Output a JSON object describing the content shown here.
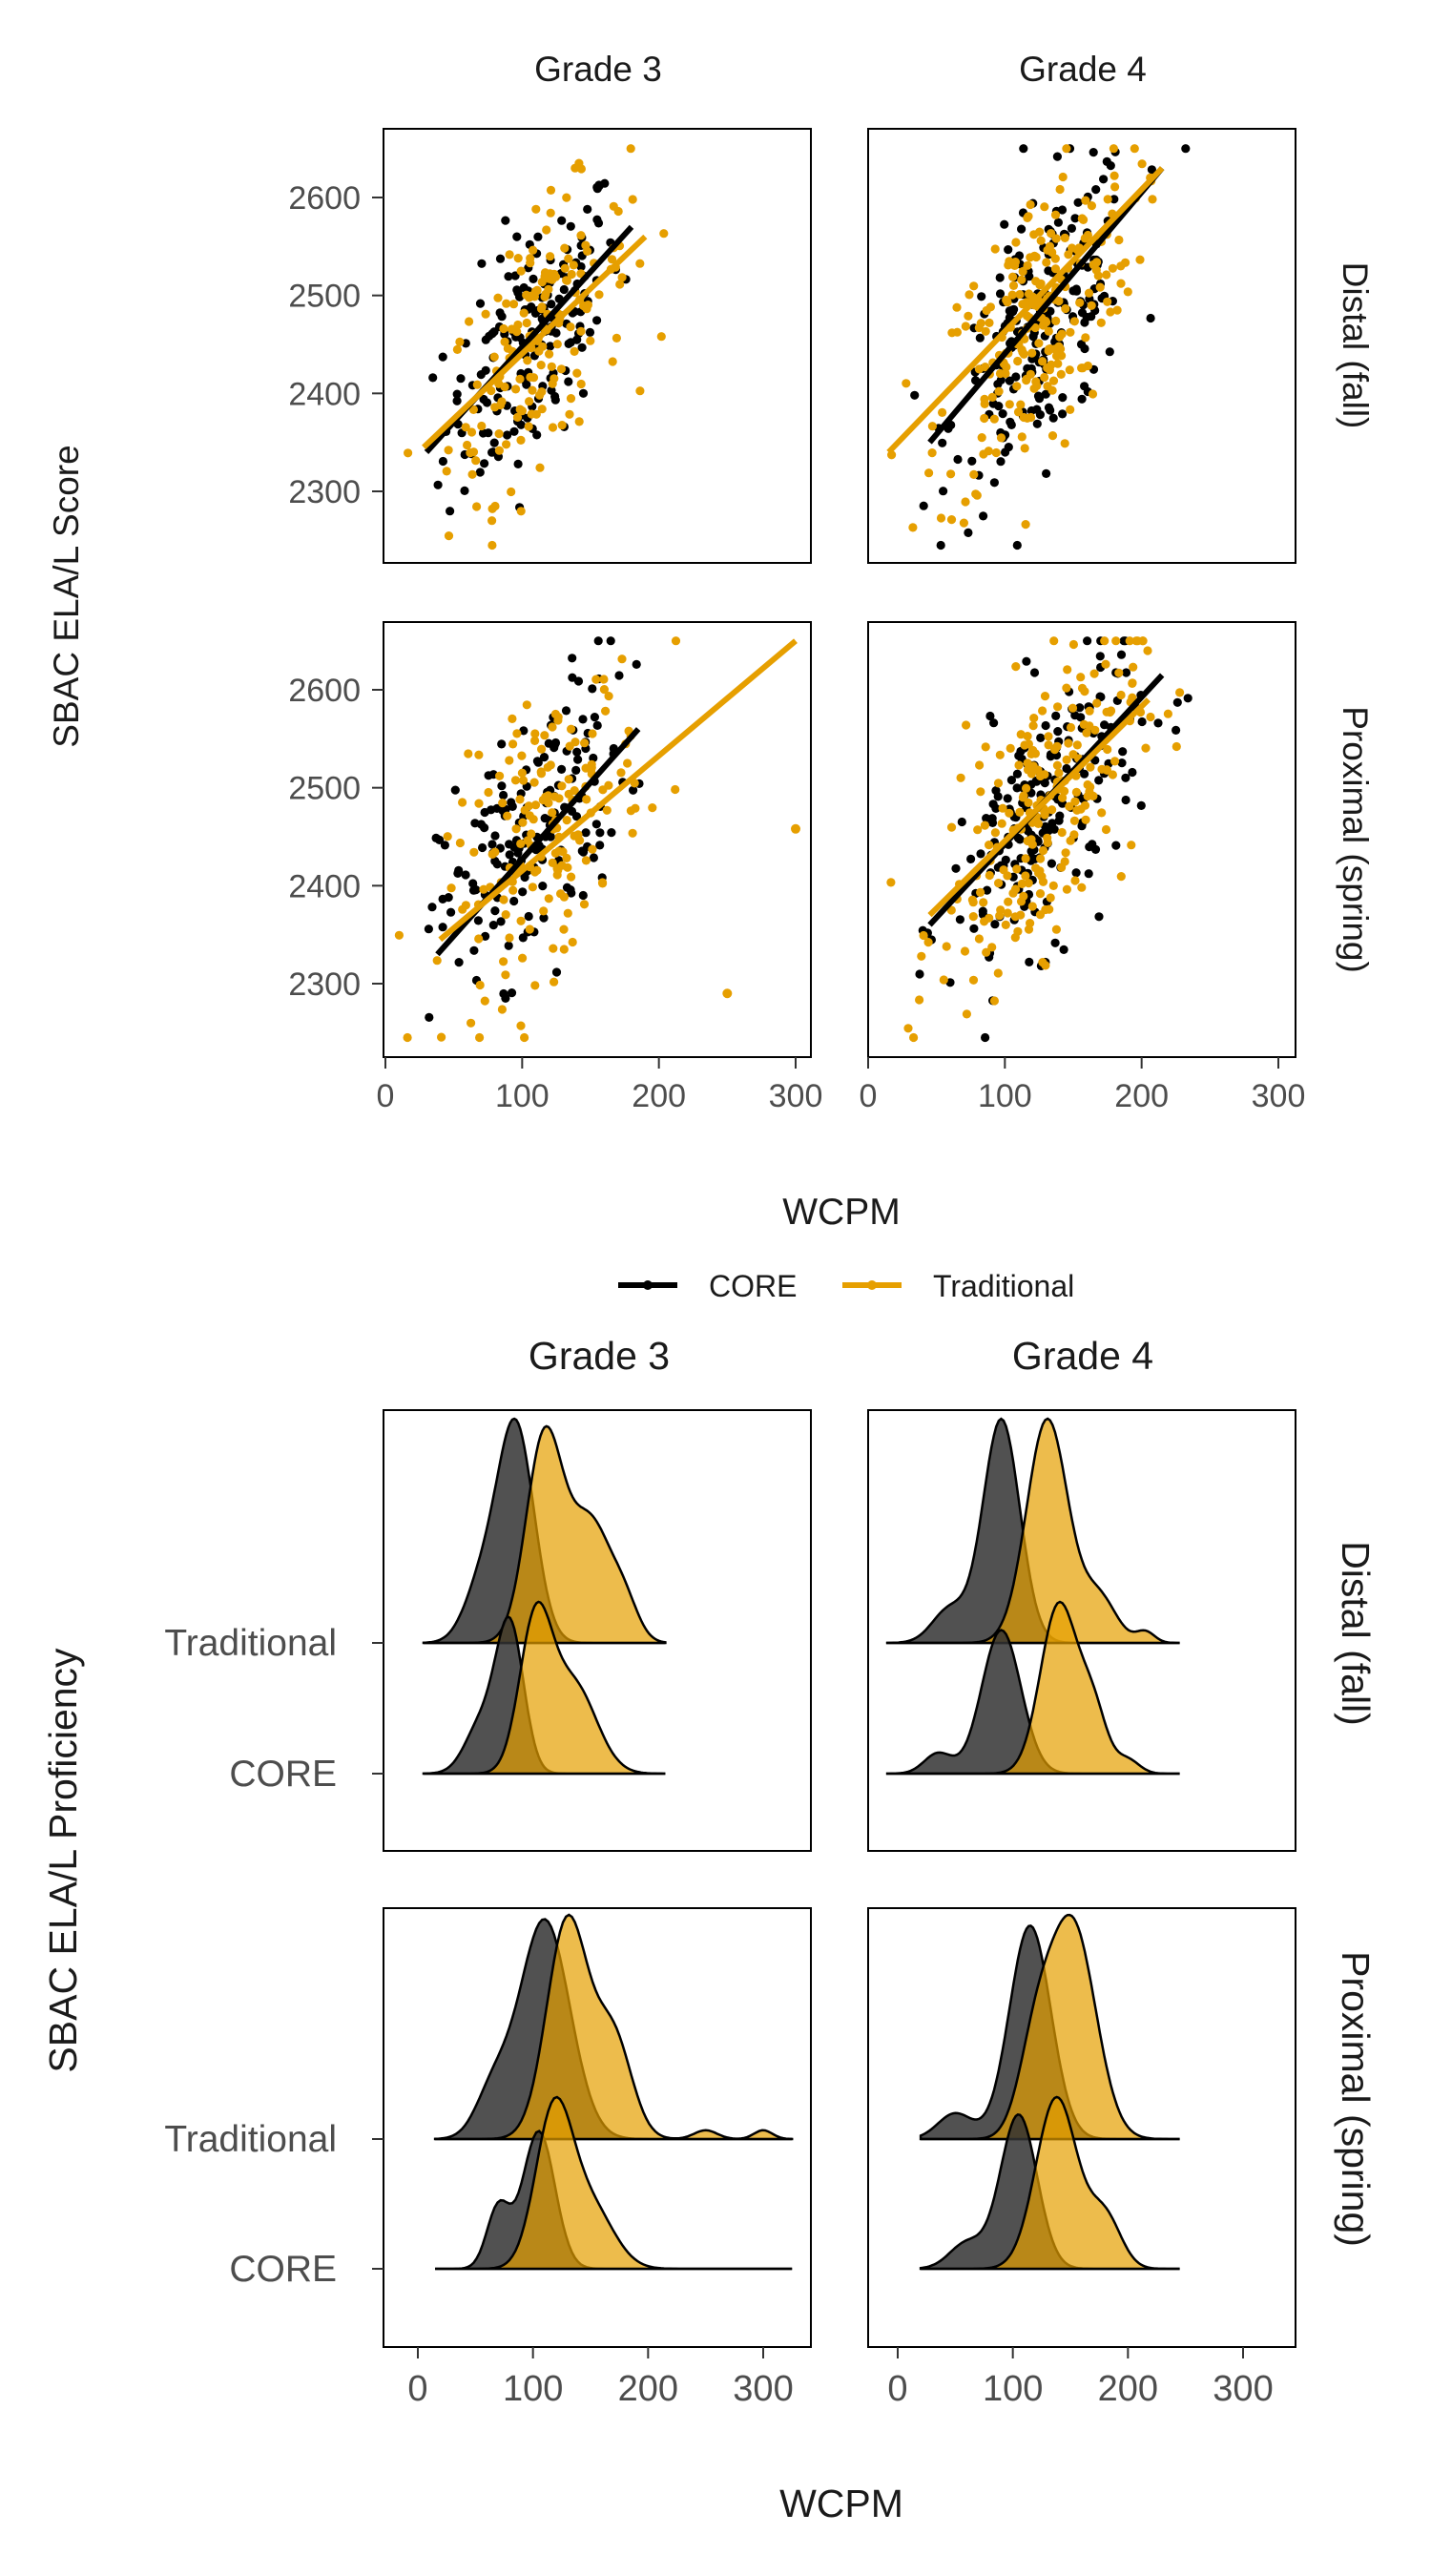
{
  "figure": {
    "top_strip_labels": [
      "Grade 3",
      "Grade 4"
    ],
    "bottom_strip_labels": [
      "Grade 3",
      "Grade 4"
    ],
    "row_labels": [
      "Distal (fall)",
      "Proximal (spring)"
    ],
    "top_ylabel": "SBAC ELA/L Score",
    "top_xlabel": "WCPM",
    "bottom_ylabel": "SBAC ELA/L Proficiency",
    "bottom_xlabel": "WCPM",
    "legend": [
      "CORE",
      "Traditional"
    ],
    "colors": {
      "CORE": "#000000",
      "Traditional": "#E69F00"
    }
  },
  "chart_data": [
    {
      "type": "scatter",
      "title": "",
      "facets": {
        "columns": [
          "Grade 3",
          "Grade 4"
        ],
        "rows": [
          "Distal (fall)",
          "Proximal (spring)"
        ]
      },
      "xlabel": "WCPM",
      "ylabel": "SBAC ELA/L Score",
      "xlim": [
        0,
        310
      ],
      "ylim": [
        2220,
        2670
      ],
      "xticks": [
        0,
        100,
        200,
        300
      ],
      "yticks": [
        2300,
        2400,
        2500,
        2600
      ],
      "legend_position": "bottom",
      "series": [
        {
          "name": "CORE",
          "color": "#000000"
        },
        {
          "name": "Traditional",
          "color": "#E69F00"
        }
      ],
      "panels": [
        {
          "column": "Grade 3",
          "row": "Distal (fall)",
          "point_cloud": {
            "CORE": {
              "x_mean": 108,
              "x_sd": 32,
              "y_mean": 2455,
              "y_sd": 75,
              "r": 0.6,
              "n": 170
            },
            "Traditional": {
              "x_mean": 112,
              "x_sd": 33,
              "y_mean": 2455,
              "y_sd": 75,
              "r": 0.6,
              "n": 170
            }
          },
          "fit_lines": {
            "CORE": {
              "x": [
                30,
                180
              ],
              "y": [
                2340,
                2570
              ]
            },
            "Traditional": {
              "x": [
                28,
                190
              ],
              "y": [
                2345,
                2560
              ]
            }
          }
        },
        {
          "column": "Grade 4",
          "row": "Distal (fall)",
          "point_cloud": {
            "CORE": {
              "x_mean": 128,
              "x_sd": 33,
              "y_mean": 2470,
              "y_sd": 80,
              "r": 0.6,
              "n": 210
            },
            "Traditional": {
              "x_mean": 122,
              "x_sd": 36,
              "y_mean": 2470,
              "y_sd": 85,
              "r": 0.6,
              "n": 230
            }
          },
          "fit_lines": {
            "CORE": {
              "x": [
                45,
                215
              ],
              "y": [
                2350,
                2630
              ]
            },
            "Traditional": {
              "x": [
                15,
                215
              ],
              "y": [
                2340,
                2630
              ]
            }
          }
        },
        {
          "column": "Grade 3",
          "row": "Proximal (spring)",
          "point_cloud": {
            "CORE": {
              "x_mean": 108,
              "x_sd": 34,
              "y_mean": 2455,
              "y_sd": 80,
              "r": 0.6,
              "n": 170
            },
            "Traditional": {
              "x_mean": 118,
              "x_sd": 36,
              "y_mean": 2455,
              "y_sd": 80,
              "r": 0.55,
              "n": 170
            }
          },
          "fit_lines": {
            "CORE": {
              "x": [
                38,
                185
              ],
              "y": [
                2330,
                2560
              ]
            },
            "Traditional": {
              "x": [
                40,
                300
              ],
              "y": [
                2345,
                2650
              ]
            }
          },
          "extra_points": {
            "Traditional": [
              {
                "x": 300,
                "y": 2458
              },
              {
                "x": 250,
                "y": 2290
              }
            ]
          }
        },
        {
          "column": "Grade 4",
          "row": "Proximal (spring)",
          "point_cloud": {
            "CORE": {
              "x_mean": 130,
              "x_sd": 35,
              "y_mean": 2475,
              "y_sd": 80,
              "r": 0.6,
              "n": 210
            },
            "Traditional": {
              "x_mean": 125,
              "x_sd": 36,
              "y_mean": 2470,
              "y_sd": 85,
              "r": 0.6,
              "n": 230
            }
          },
          "fit_lines": {
            "CORE": {
              "x": [
                45,
                215
              ],
              "y": [
                2360,
                2615
              ]
            },
            "Traditional": {
              "x": [
                45,
                205
              ],
              "y": [
                2370,
                2590
              ]
            }
          }
        }
      ]
    },
    {
      "type": "ridgeline",
      "title": "",
      "facets": {
        "columns": [
          "Grade 3",
          "Grade 4"
        ],
        "rows": [
          "Distal (fall)",
          "Proximal (spring)"
        ]
      },
      "xlabel": "WCPM",
      "ylabel": "SBAC ELA/L Proficiency",
      "xlim": [
        -30,
        340
      ],
      "xticks": [
        0,
        100,
        200,
        300
      ],
      "y_categories": [
        "CORE",
        "Traditional"
      ],
      "fill_colors": {
        "not_proficient": "#333333",
        "proficient": "#E69F00"
      },
      "panels": [
        {
          "column": "Grade 3",
          "row": "Distal (fall)",
          "range": [
            5,
            215
          ],
          "ridges": {
            "Traditional": {
              "dark": {
                "peaks": [
                  [
                    85,
                    16,
                    1.0
                  ],
                  [
                    55,
                    15,
                    0.25
                  ]
                ]
              },
              "gold": {
                "peaks": [
                  [
                    110,
                    16,
                    0.95
                  ],
                  [
                    150,
                    18,
                    0.55
                  ],
                  [
                    180,
                    12,
                    0.15
                  ]
                ]
              }
            },
            "CORE": {
              "dark": {
                "peaks": [
                  [
                    80,
                    12,
                    0.9
                  ],
                  [
                    55,
                    14,
                    0.3
                  ]
                ]
              },
              "gold": {
                "peaks": [
                  [
                    102,
                    14,
                    0.9
                  ],
                  [
                    135,
                    20,
                    0.55
                  ]
                ]
              }
            }
          }
        },
        {
          "column": "Grade 4",
          "row": "Distal (fall)",
          "range": [
            -10,
            245
          ],
          "ridges": {
            "Traditional": {
              "dark": {
                "peaks": [
                  [
                    90,
                    16,
                    1.0
                  ],
                  [
                    45,
                    15,
                    0.15
                  ]
                ]
              },
              "gold": {
                "peaks": [
                  [
                    130,
                    18,
                    1.0
                  ],
                  [
                    175,
                    15,
                    0.2
                  ],
                  [
                    215,
                    8,
                    0.05
                  ]
                ]
              }
            },
            "CORE": {
              "dark": {
                "peaks": [
                  [
                    90,
                    17,
                    0.85
                  ],
                  [
                    35,
                    12,
                    0.12
                  ]
                ]
              },
              "gold": {
                "peaks": [
                  [
                    140,
                    16,
                    1.0
                  ],
                  [
                    170,
                    12,
                    0.35
                  ],
                  [
                    200,
                    10,
                    0.08
                  ]
                ]
              }
            }
          }
        },
        {
          "column": "Grade 3",
          "row": "Proximal (spring)",
          "range": [
            15,
            325
          ],
          "ridges": {
            "Traditional": {
              "dark": {
                "peaks": [
                  [
                    110,
                    22,
                    1.0
                  ],
                  [
                    65,
                    15,
                    0.2
                  ]
                ]
              },
              "gold": {
                "peaks": [
                  [
                    130,
                    18,
                    1.0
                  ],
                  [
                    170,
                    16,
                    0.45
                  ],
                  [
                    250,
                    10,
                    0.04
                  ],
                  [
                    300,
                    8,
                    0.04
                  ]
                ]
              }
            },
            "CORE": {
              "dark": {
                "peaks": [
                  [
                    105,
                    14,
                    0.9
                  ],
                  [
                    70,
                    10,
                    0.4
                  ]
                ]
              },
              "gold": {
                "peaks": [
                  [
                    118,
                    16,
                    1.0
                  ],
                  [
                    150,
                    20,
                    0.4
                  ]
                ]
              }
            }
          }
        },
        {
          "column": "Grade 4",
          "row": "Proximal (spring)",
          "range": [
            20,
            245
          ],
          "ridges": {
            "Traditional": {
              "dark": {
                "peaks": [
                  [
                    115,
                    18,
                    1.0
                  ],
                  [
                    50,
                    15,
                    0.12
                  ]
                ]
              },
              "gold": {
                "peaks": [
                  [
                    152,
                    20,
                    1.0
                  ],
                  [
                    120,
                    15,
                    0.4
                  ]
                ]
              }
            },
            "CORE": {
              "dark": {
                "peaks": [
                  [
                    105,
                    16,
                    0.9
                  ],
                  [
                    60,
                    15,
                    0.15
                  ]
                ]
              },
              "gold": {
                "peaks": [
                  [
                    138,
                    18,
                    1.0
                  ],
                  [
                    180,
                    14,
                    0.3
                  ]
                ]
              }
            }
          }
        }
      ]
    }
  ]
}
